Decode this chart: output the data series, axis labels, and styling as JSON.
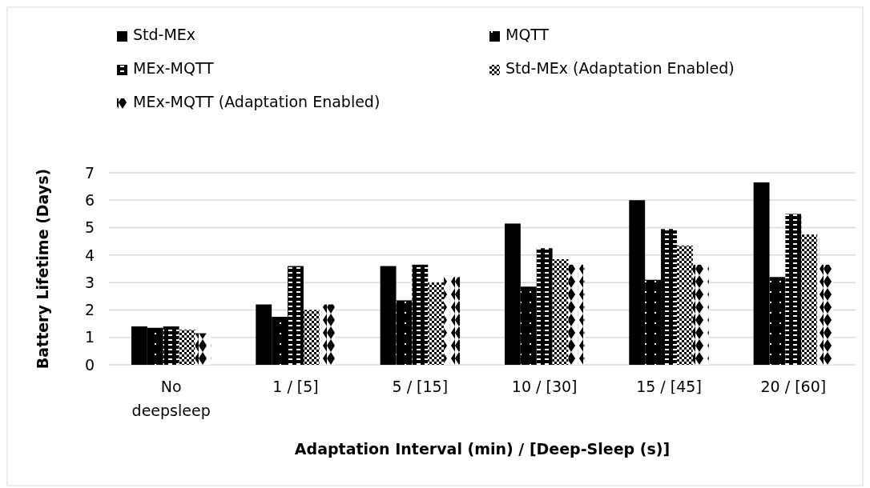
{
  "chart_data": {
    "type": "bar",
    "xlabel": "Adaptation Interval (min) / [Deep-Sleep (s)]",
    "ylabel": "Battery Lifetime (Days)",
    "categories": [
      "No deepsleep",
      "1 / [5]",
      "5 / [15]",
      "10 / [30]",
      "15 / [45]",
      "20 / [60]"
    ],
    "series": [
      {
        "name": "Std-MEx",
        "color": "#000000",
        "values": [
          1.4,
          2.2,
          3.6,
          5.15,
          6.0,
          6.65
        ]
      },
      {
        "name": "MQTT",
        "color": "#000000",
        "values": [
          1.35,
          1.75,
          2.35,
          2.85,
          3.1,
          3.2
        ]
      },
      {
        "name": "MEx-MQTT",
        "color": "#000000",
        "values": [
          1.4,
          3.6,
          3.65,
          4.25,
          4.95,
          5.5
        ]
      },
      {
        "name": "Std-MEx (Adaptation Enabled)",
        "color": "#000000",
        "values": [
          1.28,
          2.0,
          3.0,
          3.85,
          4.35,
          4.75
        ]
      },
      {
        "name": "MEx-MQTT (Adaptation Enabled)",
        "color": "#000000",
        "values": [
          1.15,
          2.2,
          3.2,
          3.65,
          3.65,
          3.65
        ]
      }
    ],
    "ylim": [
      0,
      7
    ],
    "yticks": [
      0,
      1,
      2,
      3,
      4,
      5,
      6,
      7
    ],
    "grid": "y",
    "legend": "top"
  }
}
